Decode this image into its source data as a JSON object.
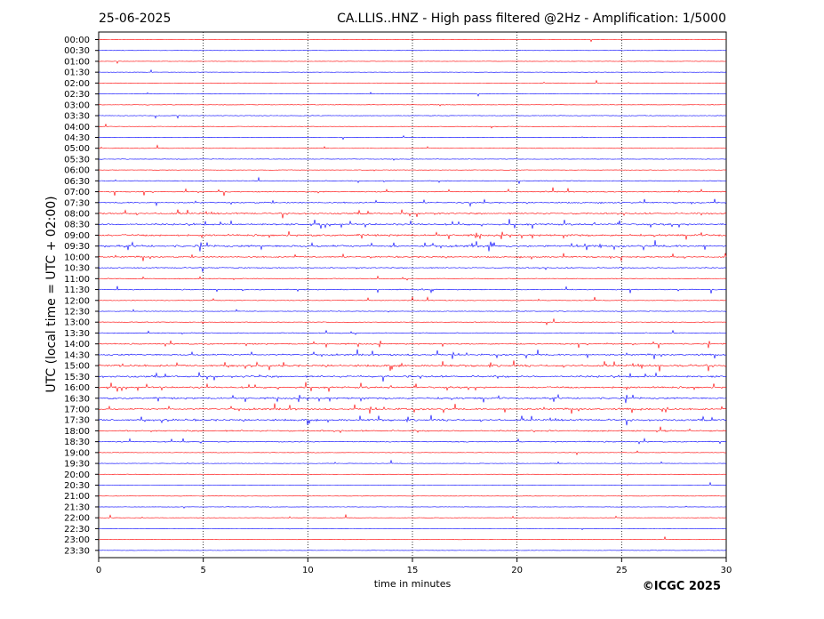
{
  "header": {
    "date": "25-06-2025",
    "title": "CA.LLIS..HNZ - High pass filtered @2Hz - Amplification: 1/5000"
  },
  "footer": {
    "copyright": "©ICGC 2025"
  },
  "chart_data": {
    "type": "line",
    "title": "CA.LLIS..HNZ - High pass filtered @2Hz - Amplification: 1/5000",
    "xlabel": "time in minutes",
    "ylabel": "UTC (local time = UTC + 02:00)",
    "xlim": [
      0,
      30
    ],
    "x_ticks": [
      0,
      5,
      10,
      15,
      20,
      25,
      30
    ],
    "vertical_grid_minutes": [
      5,
      10,
      15,
      20,
      25
    ],
    "grid": "vertical dotted",
    "colors": {
      "red": "#ff0000",
      "blue": "#0000ff"
    },
    "series": [
      {
        "name": "00:00",
        "color": "red",
        "activity": 0.02
      },
      {
        "name": "00:30",
        "color": "blue",
        "activity": 0.02
      },
      {
        "name": "01:00",
        "color": "red",
        "activity": 0.02
      },
      {
        "name": "01:30",
        "color": "blue",
        "activity": 0.02
      },
      {
        "name": "02:00",
        "color": "red",
        "activity": 0.02
      },
      {
        "name": "02:30",
        "color": "blue",
        "activity": 0.02
      },
      {
        "name": "03:00",
        "color": "red",
        "activity": 0.05
      },
      {
        "name": "03:30",
        "color": "blue",
        "activity": 0.08
      },
      {
        "name": "04:00",
        "color": "red",
        "activity": 0.06
      },
      {
        "name": "04:30",
        "color": "blue",
        "activity": 0.04
      },
      {
        "name": "05:00",
        "color": "red",
        "activity": 0.05
      },
      {
        "name": "05:30",
        "color": "blue",
        "activity": 0.06
      },
      {
        "name": "06:00",
        "color": "red",
        "activity": 0.06
      },
      {
        "name": "06:30",
        "color": "blue",
        "activity": 0.15
      },
      {
        "name": "07:00",
        "color": "red",
        "activity": 0.25
      },
      {
        "name": "07:30",
        "color": "blue",
        "activity": 0.3
      },
      {
        "name": "08:00",
        "color": "red",
        "activity": 0.4
      },
      {
        "name": "08:30",
        "color": "blue",
        "activity": 0.45
      },
      {
        "name": "09:00",
        "color": "red",
        "activity": 0.5
      },
      {
        "name": "09:30",
        "color": "blue",
        "activity": 0.55
      },
      {
        "name": "10:00",
        "color": "red",
        "activity": 0.35
      },
      {
        "name": "10:30",
        "color": "blue",
        "activity": 0.25
      },
      {
        "name": "11:00",
        "color": "red",
        "activity": 0.2
      },
      {
        "name": "11:30",
        "color": "blue",
        "activity": 0.22
      },
      {
        "name": "12:00",
        "color": "red",
        "activity": 0.12
      },
      {
        "name": "12:30",
        "color": "blue",
        "activity": 0.1
      },
      {
        "name": "13:00",
        "color": "red",
        "activity": 0.12
      },
      {
        "name": "13:30",
        "color": "blue",
        "activity": 0.22
      },
      {
        "name": "14:00",
        "color": "red",
        "activity": 0.3
      },
      {
        "name": "14:30",
        "color": "blue",
        "activity": 0.4
      },
      {
        "name": "15:00",
        "color": "red",
        "activity": 0.55
      },
      {
        "name": "15:30",
        "color": "blue",
        "activity": 0.5
      },
      {
        "name": "16:00",
        "color": "red",
        "activity": 0.45
      },
      {
        "name": "16:30",
        "color": "blue",
        "activity": 0.45
      },
      {
        "name": "17:00",
        "color": "red",
        "activity": 0.45
      },
      {
        "name": "17:30",
        "color": "blue",
        "activity": 0.5
      },
      {
        "name": "18:00",
        "color": "red",
        "activity": 0.35
      },
      {
        "name": "18:30",
        "color": "blue",
        "activity": 0.25
      },
      {
        "name": "19:00",
        "color": "red",
        "activity": 0.05
      },
      {
        "name": "19:30",
        "color": "blue",
        "activity": 0.05
      },
      {
        "name": "20:00",
        "color": "red",
        "activity": 0.03
      },
      {
        "name": "20:30",
        "color": "blue",
        "activity": 0.03
      },
      {
        "name": "21:00",
        "color": "red",
        "activity": 0.03
      },
      {
        "name": "21:30",
        "color": "blue",
        "activity": 0.03
      },
      {
        "name": "22:00",
        "color": "red",
        "activity": 0.04
      },
      {
        "name": "22:30",
        "color": "blue",
        "activity": 0.03
      },
      {
        "name": "23:00",
        "color": "red",
        "activity": 0.03
      },
      {
        "name": "23:30",
        "color": "blue",
        "activity": 0.03
      }
    ]
  }
}
